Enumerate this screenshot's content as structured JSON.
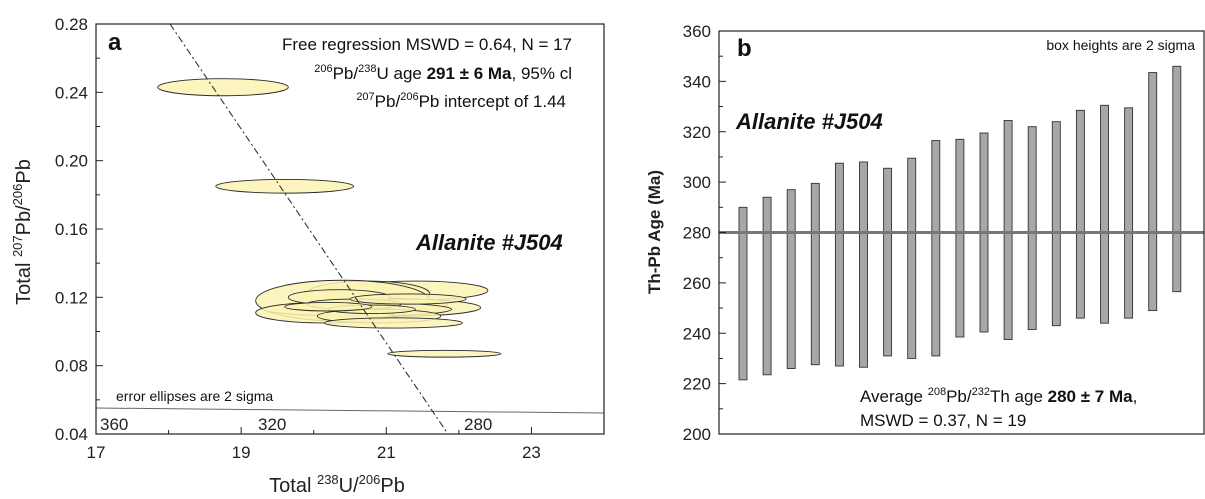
{
  "chart_data": [
    {
      "type": "scatter",
      "panel_label": "a",
      "xlim": [
        17,
        24
      ],
      "ylim": [
        0.04,
        0.28
      ],
      "x_ticks": [
        "17",
        "19",
        "21",
        "23"
      ],
      "y_ticks": [
        "0.04",
        "0.08",
        "0.12",
        "0.16",
        "0.20",
        "0.24",
        "0.28"
      ],
      "xlabel": {
        "pre": "Total ",
        "sup": "238",
        "post": "U/",
        "sup2": "206",
        "post2": "Pb"
      },
      "ylabel": {
        "pre": "Total ",
        "sup": "207",
        "post": "Pb/",
        "sup2": "206",
        "post2": "Pb"
      },
      "annotations": {
        "line1": "Free regression MSWD = 0.64, N = 17",
        "line2": {
          "sup": "206",
          "a": "Pb/",
          "sup2": "238",
          "b": "U age ",
          "bold": "291 ± 6 Ma",
          "c": ", 95% cl"
        },
        "line3": {
          "sup": "207",
          "a": "Pb/",
          "sup2": "206",
          "b": "Pb intercept of 1.44"
        },
        "sample": "Allanite #J504",
        "note": "error ellipses are 2 sigma"
      },
      "concordia_labels": [
        "360",
        "320",
        "280"
      ],
      "regression_line": {
        "x": [
          18.02,
          21.85
        ],
        "y": [
          0.28,
          0.04
        ]
      },
      "ellipses": [
        {
          "x": 18.75,
          "y": 0.243,
          "rx": 0.9,
          "ry": 0.005
        },
        {
          "x": 19.6,
          "y": 0.185,
          "rx": 0.95,
          "ry": 0.004
        },
        {
          "x": 21.4,
          "y": 0.124,
          "rx": 1.0,
          "ry": 0.0055
        },
        {
          "x": 20.75,
          "y": 0.122,
          "rx": 0.85,
          "ry": 0.0075
        },
        {
          "x": 20.4,
          "y": 0.118,
          "rx": 1.2,
          "ry": 0.012
        },
        {
          "x": 20.95,
          "y": 0.116,
          "rx": 0.9,
          "ry": 0.0035
        },
        {
          "x": 21.2,
          "y": 0.114,
          "rx": 1.1,
          "ry": 0.005
        },
        {
          "x": 20.6,
          "y": 0.113,
          "rx": 1.3,
          "ry": 0.004
        },
        {
          "x": 20.15,
          "y": 0.111,
          "rx": 0.95,
          "ry": 0.006
        },
        {
          "x": 20.9,
          "y": 0.109,
          "rx": 0.85,
          "ry": 0.004
        },
        {
          "x": 20.35,
          "y": 0.12,
          "rx": 0.7,
          "ry": 0.0045
        },
        {
          "x": 21.1,
          "y": 0.105,
          "rx": 0.95,
          "ry": 0.003
        },
        {
          "x": 20.55,
          "y": 0.116,
          "rx": 0.65,
          "ry": 0.003
        },
        {
          "x": 21.3,
          "y": 0.119,
          "rx": 0.8,
          "ry": 0.003
        },
        {
          "x": 20.8,
          "y": 0.113,
          "rx": 0.6,
          "ry": 0.0025
        },
        {
          "x": 20.2,
          "y": 0.1145,
          "rx": 0.6,
          "ry": 0.0025
        },
        {
          "x": 21.8,
          "y": 0.087,
          "rx": 0.78,
          "ry": 0.002
        }
      ]
    },
    {
      "type": "bar",
      "panel_label": "b",
      "ylim": [
        200,
        360
      ],
      "y_ticks": [
        "200",
        "220",
        "240",
        "260",
        "280",
        "300",
        "320",
        "340",
        "360"
      ],
      "ylabel": "Th-Pb Age (Ma)",
      "average_line": 280,
      "annotations": {
        "top_note": "box heights are 2 sigma",
        "sample": "Allanite #J504",
        "line1": {
          "a": "Average ",
          "sup": "208",
          "b": "Pb/",
          "sup2": "232",
          "c": "Th age ",
          "bold": "280 ± 7 Ma",
          "d": ","
        },
        "line2": "MSWD = 0.37, N =  19"
      },
      "boxes": [
        {
          "low": 221.5,
          "high": 290
        },
        {
          "low": 223.5,
          "high": 294
        },
        {
          "low": 226,
          "high": 297
        },
        {
          "low": 227.5,
          "high": 299.5
        },
        {
          "low": 227,
          "high": 307.5
        },
        {
          "low": 226.5,
          "high": 308
        },
        {
          "low": 231,
          "high": 305.5
        },
        {
          "low": 230,
          "high": 309.5
        },
        {
          "low": 231,
          "high": 316.5
        },
        {
          "low": 238.5,
          "high": 317
        },
        {
          "low": 240.5,
          "high": 319.5
        },
        {
          "low": 237.5,
          "high": 324.5
        },
        {
          "low": 241.5,
          "high": 322
        },
        {
          "low": 243,
          "high": 324
        },
        {
          "low": 246,
          "high": 328.5
        },
        {
          "low": 244,
          "high": 330.5
        },
        {
          "low": 246,
          "high": 329.5
        },
        {
          "low": 249,
          "high": 343.5
        },
        {
          "low": 256.5,
          "high": 346
        }
      ]
    }
  ]
}
